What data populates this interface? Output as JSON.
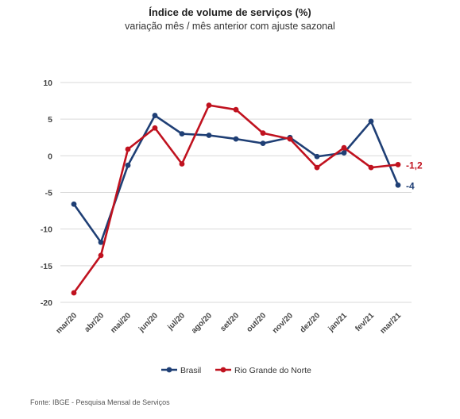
{
  "chart_data": {
    "type": "line",
    "title": "Índice de volume de serviços (%)",
    "subtitle": "variação mês / mês anterior com ajuste sazonal",
    "categories": [
      "mar/20",
      "abr/20",
      "mai/20",
      "jun/20",
      "jul/20",
      "ago/20",
      "set/20",
      "out/20",
      "nov/20",
      "dez/20",
      "jan/21",
      "fev/21",
      "mar/21"
    ],
    "yticks": [
      10,
      5,
      0,
      -5,
      -10,
      -15,
      -20
    ],
    "ylim": [
      -20,
      10
    ],
    "grid": "horizontal",
    "legend_position": "bottom",
    "series": [
      {
        "name": "Brasil",
        "color": "#1f3f75",
        "values": [
          -6.6,
          -11.8,
          -1.3,
          5.5,
          3.0,
          2.8,
          2.3,
          1.7,
          2.5,
          -0.1,
          0.4,
          4.7,
          -4.0
        ],
        "end_label": "-4"
      },
      {
        "name": "Rio Grande do Norte",
        "color": "#c0121f",
        "values": [
          -18.7,
          -13.6,
          0.9,
          3.8,
          -1.1,
          6.9,
          6.3,
          3.1,
          2.3,
          -1.6,
          1.1,
          -1.6,
          -1.2
        ],
        "end_label": "-1,2"
      }
    ]
  },
  "source": "Fonte: IBGE - Pesquisa Mensal de Serviços"
}
